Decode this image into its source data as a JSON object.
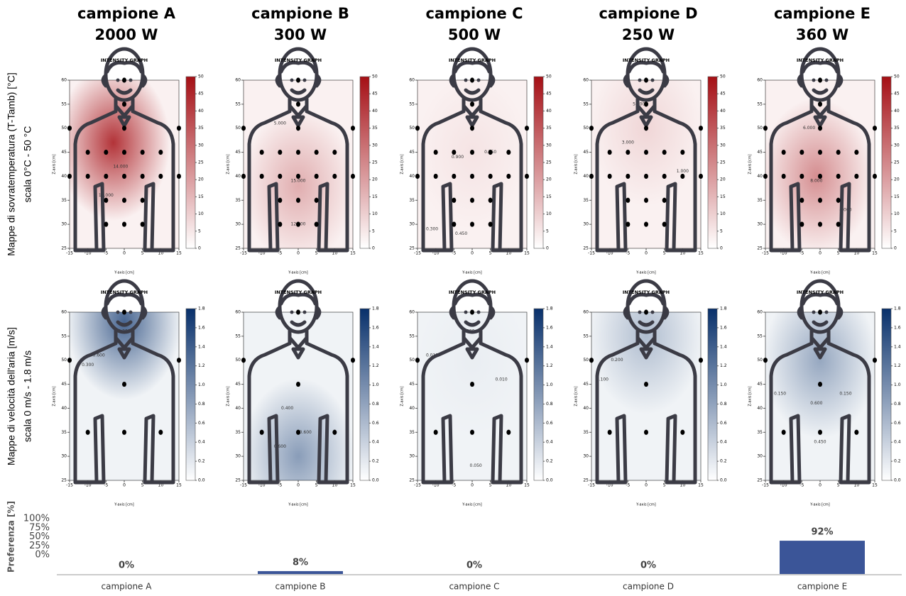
{
  "columns": [
    {
      "name": "campione A",
      "power": "2000 W"
    },
    {
      "name": "campione B",
      "power": "300 W"
    },
    {
      "name": "campione C",
      "power": "500 W"
    },
    {
      "name": "campione D",
      "power": "250 W"
    },
    {
      "name": "campione E",
      "power": "360 W"
    }
  ],
  "rows": [
    {
      "label": "Mappe di sovratemperatura (T-Tamb) [°C]",
      "scale": "scala 0°C - 50 °C",
      "graph_title": "INTENSITY GRAPH",
      "x_label": "Y-axis [cm]",
      "y_label": "Z-axis [cm]",
      "xlim": [
        -15,
        15
      ],
      "ylim": [
        25,
        60
      ],
      "xticks": [
        -15,
        -10,
        -5,
        0,
        5,
        10,
        15
      ],
      "yticks": [
        25,
        30,
        35,
        40,
        45,
        50,
        55,
        60
      ],
      "colorbar": {
        "lim": [
          0,
          50
        ],
        "ticks": [
          0,
          5,
          10,
          15,
          20,
          25,
          30,
          35,
          40,
          45,
          50
        ],
        "color": "#a50f15"
      },
      "sensors": [
        [
          -10,
          45
        ],
        [
          -5,
          45
        ],
        [
          0,
          45
        ],
        [
          5,
          45
        ],
        [
          10,
          45
        ],
        [
          -15,
          40
        ],
        [
          -10,
          40
        ],
        [
          -5,
          40
        ],
        [
          0,
          40
        ],
        [
          5,
          40
        ],
        [
          10,
          40
        ],
        [
          15,
          40
        ],
        [
          -5,
          35
        ],
        [
          0,
          35
        ],
        [
          5,
          35
        ],
        [
          -5,
          30
        ],
        [
          0,
          30
        ],
        [
          5,
          30
        ],
        [
          -15,
          50
        ],
        [
          0,
          50
        ],
        [
          15,
          50
        ],
        [
          0,
          55
        ],
        [
          0,
          60
        ]
      ],
      "panels": [
        {
          "peak": {
            "y": -3,
            "z": 47,
            "value": 42
          },
          "contour_labels": [
            {
              "text": "16.000",
              "y": -5,
              "z": 36
            },
            {
              "text": "14.000",
              "y": -1,
              "z": 42
            }
          ]
        },
        {
          "peak": {
            "y": 0,
            "z": 38,
            "value": 15
          },
          "contour_labels": [
            {
              "text": "15.000",
              "y": 0,
              "z": 39
            },
            {
              "text": "12.500",
              "y": 0,
              "z": 30
            },
            {
              "text": "5.000",
              "y": -5,
              "z": 51
            }
          ]
        },
        {
          "peak": {
            "y": 0,
            "z": 45,
            "value": 3
          },
          "contour_labels": [
            {
              "text": "0.900",
              "y": -4,
              "z": 44
            },
            {
              "text": "0.750",
              "y": 5,
              "z": 45
            },
            {
              "text": "0.450",
              "y": -3,
              "z": 28
            },
            {
              "text": "0.300",
              "y": -11,
              "z": 29
            }
          ]
        },
        {
          "peak": {
            "y": 0,
            "z": 50,
            "value": 6
          },
          "contour_labels": [
            {
              "text": "5.000",
              "y": -2,
              "z": 55
            },
            {
              "text": "3.000",
              "y": -5,
              "z": 47
            },
            {
              "text": "1.000",
              "y": 10,
              "z": 41
            }
          ]
        },
        {
          "peak": {
            "y": -1,
            "z": 40,
            "value": 22
          },
          "contour_labels": [
            {
              "text": "6.000",
              "y": -3,
              "z": 50
            },
            {
              "text": "8.000",
              "y": -1,
              "z": 39
            },
            {
              "text": "4.000",
              "y": 7,
              "z": 33
            }
          ]
        }
      ]
    },
    {
      "label": "Mappe di velocità dell'aria [m/s]",
      "scale": "scala 0 m/s - 1.8 m/s",
      "graph_title": "INTENSITY GRAPH",
      "x_label": "Y-axis [cm]",
      "y_label": "Z-axis [cm]",
      "xlim": [
        -15,
        15
      ],
      "ylim": [
        25,
        60
      ],
      "xticks": [
        -15,
        -10,
        -5,
        0,
        5,
        10,
        15
      ],
      "yticks": [
        25,
        30,
        35,
        40,
        45,
        50,
        55,
        60
      ],
      "colorbar": {
        "lim": [
          0,
          1.8
        ],
        "ticks": [
          {
            "value": 0,
            "label": "0.0"
          },
          0.2,
          0.4,
          0.6,
          0.8,
          {
            "value": 1,
            "label": "1.0"
          },
          1.2,
          1.4,
          1.6,
          1.8
        ],
        "color": "#08306b"
      },
      "sensors": [
        [
          0,
          60
        ],
        [
          0,
          45
        ],
        [
          -10,
          35
        ],
        [
          0,
          35
        ],
        [
          10,
          35
        ],
        [
          -15,
          50
        ],
        [
          15,
          50
        ]
      ],
      "panels": [
        {
          "peak": {
            "y": 0,
            "z": 58,
            "value": 1.3
          },
          "contour_labels": [
            {
              "text": "1.200",
              "y": 0,
              "z": 56
            },
            {
              "text": "0.600",
              "y": -7,
              "z": 51
            },
            {
              "text": "0.300",
              "y": -10,
              "z": 49
            }
          ]
        },
        {
          "peak": {
            "y": 0,
            "z": 30,
            "value": 0.8
          },
          "contour_labels": [
            {
              "text": "0.400",
              "y": -3,
              "z": 40
            },
            {
              "text": "0.600",
              "y": 2,
              "z": 35
            },
            {
              "text": "0.600",
              "y": -5,
              "z": 32
            }
          ]
        },
        {
          "peak": {
            "y": 0,
            "z": 50,
            "value": 0.05
          },
          "contour_labels": [
            {
              "text": "0.020",
              "y": -1,
              "z": 56
            },
            {
              "text": "0.010",
              "y": -11,
              "z": 51
            },
            {
              "text": "0.010",
              "y": 8,
              "z": 46
            },
            {
              "text": "0.050",
              "y": 1,
              "z": 28
            }
          ]
        },
        {
          "peak": {
            "y": 0,
            "z": 55,
            "value": 0.5
          },
          "contour_labels": [
            {
              "text": "0.200",
              "y": -8,
              "z": 50
            },
            {
              "text": "0.100",
              "y": -12,
              "z": 46
            }
          ]
        },
        {
          "peak": {
            "y": 0,
            "z": 50,
            "value": 0.7
          },
          "contour_labels": [
            {
              "text": "0.600",
              "y": -1,
              "z": 41
            },
            {
              "text": "0.450",
              "y": 0,
              "z": 33
            },
            {
              "text": "0.150",
              "y": -11,
              "z": 43
            },
            {
              "text": "0.150",
              "y": 7,
              "z": 43
            }
          ]
        }
      ]
    }
  ],
  "chart_data": {
    "type": "bar",
    "y_label": "Preferenza [%]",
    "categories": [
      "campione A",
      "campione B",
      "campione C",
      "campione D",
      "campione E"
    ],
    "values": [
      0,
      8,
      0,
      0,
      92
    ],
    "value_labels": [
      "0%",
      "8%",
      "0%",
      "0%",
      "92%"
    ],
    "color": "#3b5598",
    "ylim": [
      0,
      100
    ],
    "yticks": [
      {
        "value": 0,
        "label": "0%"
      },
      {
        "value": 25,
        "label": "25%"
      },
      {
        "value": 50,
        "label": "50%"
      },
      {
        "value": 75,
        "label": "75%"
      },
      {
        "value": 100,
        "label": "100%"
      }
    ]
  }
}
